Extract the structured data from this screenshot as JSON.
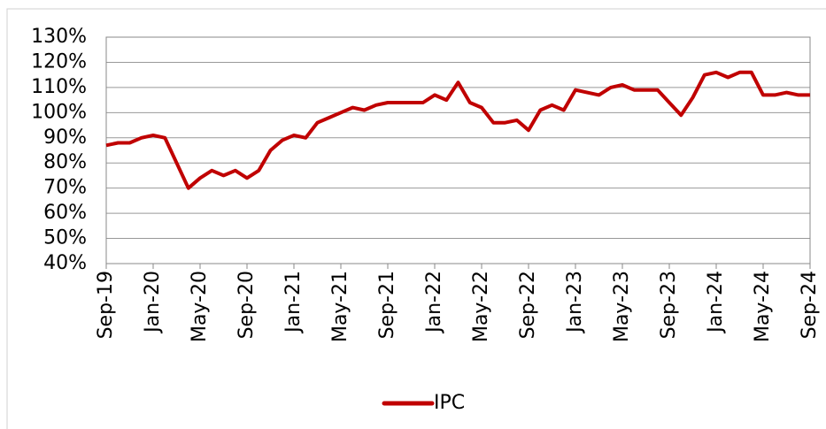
{
  "chart_data": {
    "type": "line",
    "x": [
      "Sep-19",
      null,
      null,
      null,
      "Jan-20",
      null,
      null,
      null,
      "May-20",
      null,
      null,
      null,
      "Sep-20",
      null,
      null,
      null,
      "Jan-21",
      null,
      null,
      null,
      "May-21",
      null,
      null,
      null,
      "Sep-21",
      null,
      null,
      null,
      "Jan-22",
      null,
      null,
      null,
      "May-22",
      null,
      null,
      null,
      "Sep-22",
      null,
      null,
      null,
      "Jan-23",
      null,
      null,
      null,
      "May-23",
      null,
      null,
      null,
      "Sep-23",
      null,
      null,
      null,
      "Jan-24",
      null,
      null,
      null,
      "May-24",
      null,
      null,
      null,
      "Sep-24"
    ],
    "series": [
      {
        "name": "IPC",
        "color": "#c00000",
        "values": [
          87,
          88,
          88,
          90,
          91,
          90,
          80,
          70,
          74,
          77,
          75,
          77,
          74,
          77,
          85,
          89,
          91,
          90,
          96,
          98,
          100,
          102,
          101,
          103,
          104,
          104,
          104,
          104,
          107,
          105,
          112,
          104,
          102,
          96,
          96,
          97,
          93,
          101,
          103,
          101,
          109,
          108,
          107,
          110,
          111,
          109,
          109,
          109,
          104,
          99,
          106,
          115,
          116,
          114,
          116,
          116,
          107,
          107,
          108,
          107,
          107
        ]
      }
    ],
    "ylim": [
      40,
      130
    ],
    "yticks": [
      {
        "value": 40,
        "label": "40%"
      },
      {
        "value": 50,
        "label": "50%"
      },
      {
        "value": 60,
        "label": "60%"
      },
      {
        "value": 70,
        "label": "70%"
      },
      {
        "value": 80,
        "label": "80%"
      },
      {
        "value": 90,
        "label": "90%"
      },
      {
        "value": 100,
        "label": "100%"
      },
      {
        "value": 110,
        "label": "110%"
      },
      {
        "value": 120,
        "label": "120%"
      },
      {
        "value": 130,
        "label": "130%"
      }
    ],
    "grid": true,
    "legend": "bottom"
  }
}
